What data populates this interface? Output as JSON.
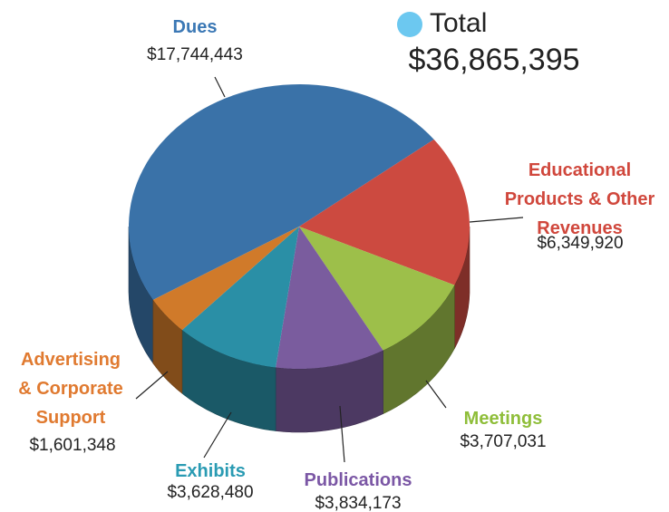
{
  "chart_data": {
    "type": "pie3d",
    "total": {
      "label": "Total",
      "value": 36865395,
      "value_label": "$36,865,395",
      "color": "#6cc8f0"
    },
    "categories": [
      "Dues",
      "Educational Products & Other Revenues",
      "Meetings",
      "Publications",
      "Exhibits",
      "Advertising & Corporate Support"
    ],
    "values": [
      17744443,
      6349920,
      3707031,
      3834173,
      3628480,
      1601348
    ],
    "value_labels": [
      "$17,744,443",
      "$6,349,920",
      "$3,707,031",
      "$3,834,173",
      "$3,628,480",
      "$1,601,348"
    ],
    "colors": [
      "#3a72a8",
      "#cc4a40",
      "#9dbf4a",
      "#7a5c9e",
      "#2a8fa6",
      "#d07a2a"
    ],
    "label_colors": [
      "#3b78b5",
      "#d0473c",
      "#8fbe3a",
      "#7b57a5",
      "#2a9bb3",
      "#e07a30"
    ]
  }
}
